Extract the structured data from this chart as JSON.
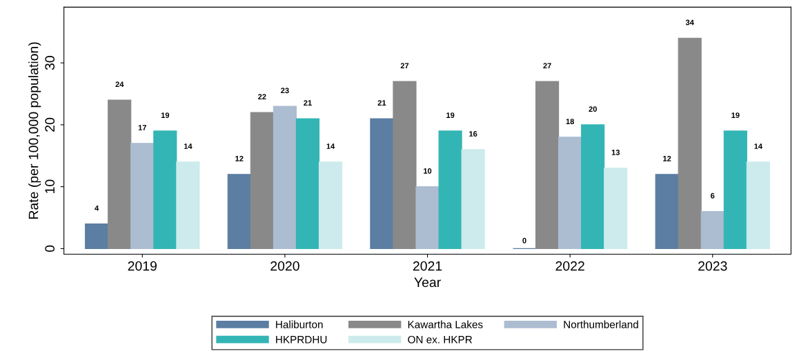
{
  "chart_data": {
    "type": "bar",
    "xlabel": "Year",
    "ylabel": "Rate (per 100,000 population)",
    "categories": [
      "2019",
      "2020",
      "2021",
      "2022",
      "2023"
    ],
    "series": [
      {
        "name": "Haliburton",
        "color": "#5b7ea2",
        "values": [
          4,
          12,
          21,
          0,
          12
        ]
      },
      {
        "name": "Kawartha Lakes",
        "color": "#898989",
        "values": [
          24,
          22,
          27,
          27,
          34
        ]
      },
      {
        "name": "Northumberland",
        "color": "#acbdd1",
        "values": [
          17,
          23,
          10,
          18,
          6
        ]
      },
      {
        "name": "HKPRDHU",
        "color": "#33b5b5",
        "values": [
          19,
          21,
          19,
          20,
          19
        ]
      },
      {
        "name": "ON ex. HKPR",
        "color": "#cdebec",
        "values": [
          14,
          14,
          16,
          13,
          14
        ]
      }
    ],
    "ylim": [
      -0.9,
      39
    ],
    "yticks": [
      0,
      10,
      20,
      30
    ],
    "data_labels": true,
    "grid": false,
    "legend": "bottom"
  }
}
